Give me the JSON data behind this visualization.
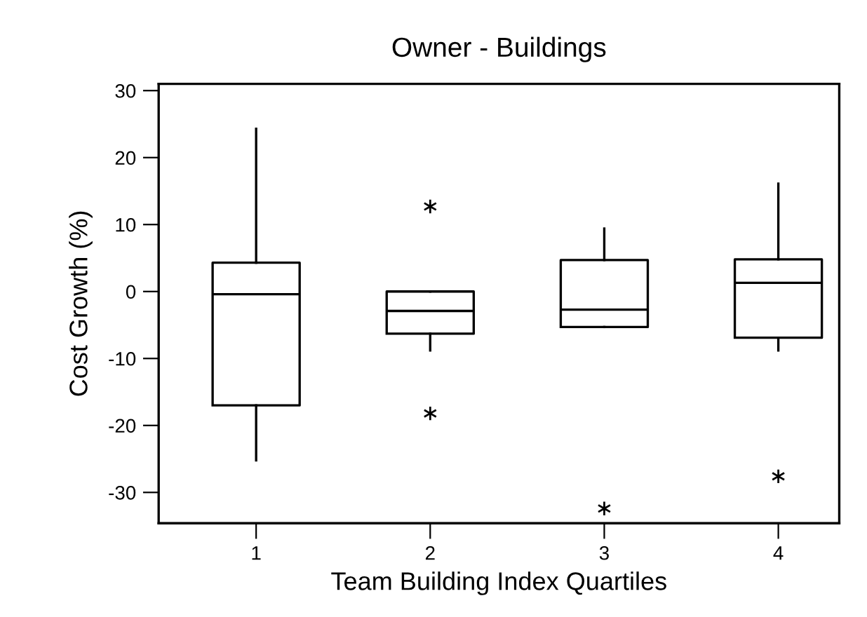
{
  "chart_data": {
    "type": "box",
    "title": "Owner - Buildings",
    "xlabel": "Team Building Index Quartiles",
    "ylabel": "Cost Growth (%)",
    "categories": [
      "1",
      "2",
      "3",
      "4"
    ],
    "boxes": [
      {
        "low": -25.2,
        "q1": -17,
        "median": -0.4,
        "q3": 4.3,
        "high": 24.3
      },
      {
        "low": -8.8,
        "q1": -6.3,
        "median": -2.9,
        "q3": 0,
        "high": 0,
        "outliers": [
          12.7,
          -18.2
        ]
      },
      {
        "low": -5.3,
        "q1": -5.3,
        "median": -2.7,
        "q3": 4.7,
        "high": 9.4,
        "outliers": [
          -32.4
        ]
      },
      {
        "low": -8.8,
        "q1": -6.9,
        "median": 1.3,
        "q3": 4.8,
        "high": 16.1,
        "outliers": [
          -27.6
        ]
      }
    ],
    "ylim": [
      -34.6,
      31
    ],
    "yticks": [
      -30,
      -20,
      -10,
      0,
      10,
      20,
      30
    ],
    "grid": false,
    "marker": "star"
  }
}
